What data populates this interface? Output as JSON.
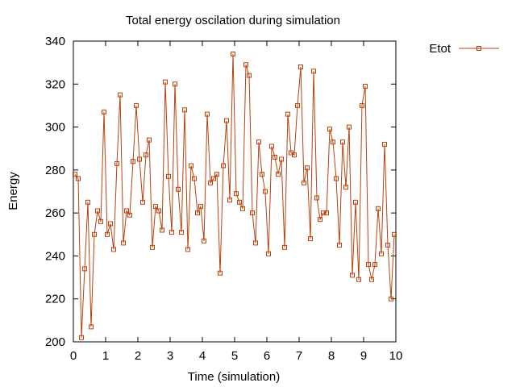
{
  "chart_data": {
    "type": "line",
    "title": "Total energy oscilation during simulation",
    "xlabel": "Time (simulation)",
    "ylabel": "Energy",
    "xlim": [
      0,
      10
    ],
    "ylim": [
      200,
      340
    ],
    "x_ticks": [
      0,
      1,
      2,
      3,
      4,
      5,
      6,
      7,
      8,
      9,
      10
    ],
    "y_ticks": [
      200,
      220,
      240,
      260,
      280,
      300,
      320,
      340
    ],
    "grid": false,
    "legend_position": "top-right outside plot",
    "series": [
      {
        "name": "Etot",
        "color": "#b8410c",
        "marker": "open-square",
        "x": [
          0.05,
          0.15,
          0.25,
          0.35,
          0.45,
          0.55,
          0.65,
          0.75,
          0.85,
          0.95,
          1.05,
          1.15,
          1.25,
          1.35,
          1.45,
          1.55,
          1.65,
          1.75,
          1.85,
          1.95,
          2.05,
          2.15,
          2.25,
          2.35,
          2.45,
          2.55,
          2.65,
          2.75,
          2.85,
          2.95,
          3.05,
          3.15,
          3.25,
          3.35,
          3.45,
          3.55,
          3.65,
          3.75,
          3.85,
          3.95,
          4.05,
          4.15,
          4.25,
          4.35,
          4.45,
          4.55,
          4.65,
          4.75,
          4.85,
          4.95,
          5.05,
          5.15,
          5.25,
          5.35,
          5.45,
          5.55,
          5.65,
          5.75,
          5.85,
          5.95,
          6.05,
          6.15,
          6.25,
          6.35,
          6.45,
          6.55,
          6.65,
          6.75,
          6.85,
          6.95,
          7.05,
          7.15,
          7.25,
          7.35,
          7.45,
          7.55,
          7.65,
          7.75,
          7.85,
          7.95,
          8.05,
          8.15,
          8.25,
          8.35,
          8.45,
          8.55,
          8.65,
          8.75,
          8.85,
          8.95,
          9.05,
          9.15,
          9.25,
          9.35,
          9.45,
          9.55,
          9.65,
          9.75,
          9.85,
          9.95
        ],
        "y": [
          278,
          276,
          202,
          234,
          265,
          207,
          250,
          261,
          256,
          307,
          250,
          255,
          243,
          283,
          315,
          246,
          261,
          259,
          284,
          310,
          285,
          265,
          287,
          294,
          244,
          263,
          261,
          252,
          321,
          277,
          251,
          320,
          271,
          251,
          308,
          243,
          282,
          276,
          260,
          263,
          247,
          306,
          274,
          276,
          278,
          232,
          282,
          303,
          266,
          334,
          269,
          265,
          262,
          329,
          324,
          260,
          246,
          293,
          278,
          270,
          241,
          291,
          286,
          278,
          285,
          244,
          306,
          288,
          287,
          310,
          328,
          274,
          281,
          248,
          326,
          267,
          257,
          260,
          260,
          299,
          293,
          276,
          245,
          293,
          272,
          300,
          231,
          265,
          229,
          310,
          319,
          236,
          229,
          236,
          262,
          241,
          292,
          245,
          220,
          250
        ]
      }
    ]
  }
}
